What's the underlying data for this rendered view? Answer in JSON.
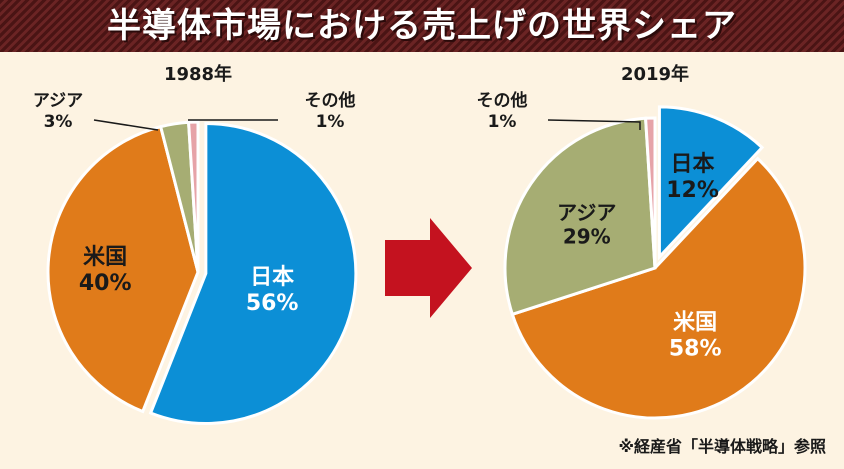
{
  "title": "半導体市場における売上げの世界シェア",
  "source_note": "※経産省「半導体戦略」参照",
  "colors": {
    "japan": "#0c8fd6",
    "us": "#e07b1a",
    "asia": "#a6ad73",
    "other": "#e6a3a8",
    "arrow": "#c4121f",
    "title_bg": "#5a1c1c",
    "background": "#fdf3e2"
  },
  "chart_data": [
    {
      "type": "pie",
      "title": "1988年",
      "slices": [
        {
          "key": "japan",
          "label": "日本",
          "value": 56,
          "display": "56%"
        },
        {
          "key": "us",
          "label": "米国",
          "value": 40,
          "display": "40%"
        },
        {
          "key": "asia",
          "label": "アジア",
          "value": 3,
          "display": "3%"
        },
        {
          "key": "other",
          "label": "その他",
          "value": 1,
          "display": "1%"
        }
      ]
    },
    {
      "type": "pie",
      "title": "2019年",
      "slices": [
        {
          "key": "japan",
          "label": "日本",
          "value": 12,
          "display": "12%"
        },
        {
          "key": "us",
          "label": "米国",
          "value": 58,
          "display": "58%"
        },
        {
          "key": "asia",
          "label": "アジア",
          "value": 29,
          "display": "29%"
        },
        {
          "key": "other",
          "label": "その他",
          "value": 1,
          "display": "1%"
        }
      ]
    }
  ]
}
